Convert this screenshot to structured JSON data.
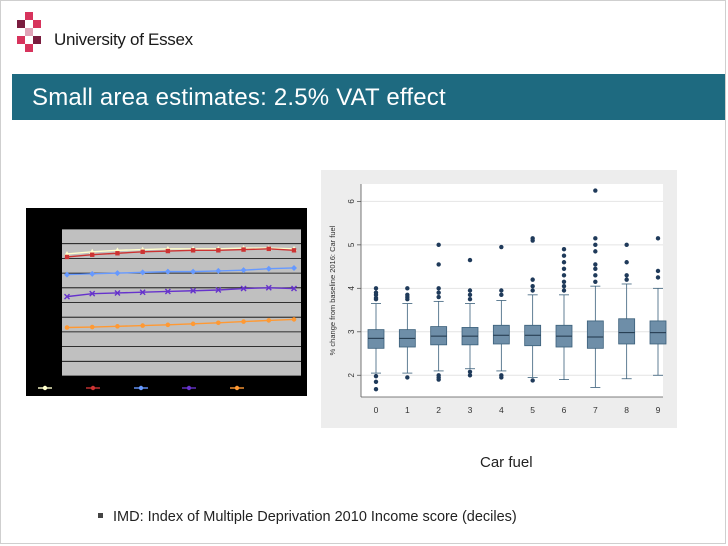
{
  "header": {
    "brand": "University of Essex",
    "logo_colors": [
      "#d7335c",
      "#7a1c3e",
      "#e0a3b7"
    ]
  },
  "slide": {
    "title": "Small area estimates: 2.5% VAT effect",
    "caption": "Car fuel",
    "bullet": "IMD: Index of Multiple Deprivation 2010 Income score (deciles)"
  },
  "chart_data": [
    {
      "type": "line",
      "x": [
        1,
        2,
        3,
        4,
        5,
        6,
        7,
        8,
        9,
        10
      ],
      "series": [
        {
          "color": "#ffffcc",
          "marker": "triangle",
          "values": [
            8.3,
            8.45,
            8.55,
            8.6,
            8.65,
            8.65,
            8.65,
            8.7,
            8.7,
            8.65
          ]
        },
        {
          "color": "#cc3333",
          "marker": "square",
          "values": [
            8.1,
            8.25,
            8.35,
            8.45,
            8.5,
            8.55,
            8.55,
            8.6,
            8.65,
            8.55
          ]
        },
        {
          "color": "#6699ff",
          "marker": "diamond",
          "values": [
            6.9,
            6.95,
            7.0,
            7.05,
            7.1,
            7.1,
            7.15,
            7.2,
            7.3,
            7.35
          ]
        },
        {
          "color": "#6633cc",
          "marker": "x",
          "values": [
            5.4,
            5.6,
            5.65,
            5.7,
            5.75,
            5.8,
            5.85,
            5.95,
            6.0,
            5.95
          ]
        },
        {
          "color": "#ff9933",
          "marker": "circle",
          "values": [
            3.3,
            3.33,
            3.38,
            3.43,
            3.48,
            3.55,
            3.62,
            3.7,
            3.78,
            3.85
          ]
        }
      ],
      "ylim": [
        0,
        10
      ],
      "grid": true
    },
    {
      "type": "box",
      "ylabel": "% change from baseline 2016: Car fuel",
      "ylim": [
        1.5,
        6.4
      ],
      "yticks": [
        2,
        3,
        4,
        5,
        6
      ],
      "categories": [
        "0",
        "1",
        "2",
        "3",
        "4",
        "5",
        "6",
        "7",
        "8",
        "9"
      ],
      "boxes": [
        {
          "whisker_low": 2.05,
          "q1": 2.62,
          "median": 2.85,
          "q3": 3.05,
          "whisker_high": 3.65,
          "outliers": [
            3.75,
            3.85,
            4.0,
            3.78,
            3.9,
            1.98,
            1.85,
            1.68
          ]
        },
        {
          "whisker_low": 2.05,
          "q1": 2.65,
          "median": 2.85,
          "q3": 3.05,
          "whisker_high": 3.65,
          "outliers": [
            3.75,
            3.85,
            4.0,
            3.8,
            1.95
          ]
        },
        {
          "whisker_low": 2.1,
          "q1": 2.7,
          "median": 2.9,
          "q3": 3.12,
          "whisker_high": 3.7,
          "outliers": [
            3.8,
            3.9,
            4.0,
            4.55,
            5.0,
            2.0,
            1.95,
            1.9
          ]
        },
        {
          "whisker_low": 2.15,
          "q1": 2.7,
          "median": 2.9,
          "q3": 3.1,
          "whisker_high": 3.65,
          "outliers": [
            3.75,
            3.85,
            3.95,
            4.65,
            2.08,
            2.0
          ]
        },
        {
          "whisker_low": 2.1,
          "q1": 2.72,
          "median": 2.92,
          "q3": 3.15,
          "whisker_high": 3.72,
          "outliers": [
            3.85,
            3.95,
            4.95,
            2.0,
            1.95
          ]
        },
        {
          "whisker_low": 1.95,
          "q1": 2.68,
          "median": 2.92,
          "q3": 3.15,
          "whisker_high": 3.85,
          "outliers": [
            3.95,
            4.05,
            4.2,
            5.1,
            5.15,
            1.88
          ]
        },
        {
          "whisker_low": 1.9,
          "q1": 2.65,
          "median": 2.9,
          "q3": 3.15,
          "whisker_high": 3.85,
          "outliers": [
            3.95,
            4.05,
            4.15,
            4.3,
            4.45,
            4.6,
            4.75,
            4.9
          ]
        },
        {
          "whisker_low": 1.72,
          "q1": 2.62,
          "median": 2.88,
          "q3": 3.25,
          "whisker_high": 4.05,
          "outliers": [
            4.15,
            4.3,
            4.45,
            4.55,
            4.85,
            5.0,
            5.15,
            6.25
          ]
        },
        {
          "whisker_low": 1.92,
          "q1": 2.72,
          "median": 2.98,
          "q3": 3.3,
          "whisker_high": 4.1,
          "outliers": [
            4.2,
            4.3,
            4.6,
            5.0
          ]
        },
        {
          "whisker_low": 2.0,
          "q1": 2.72,
          "median": 2.98,
          "q3": 3.25,
          "whisker_high": 4.0,
          "outliers": [
            4.25,
            4.4,
            5.15
          ]
        }
      ]
    }
  ]
}
